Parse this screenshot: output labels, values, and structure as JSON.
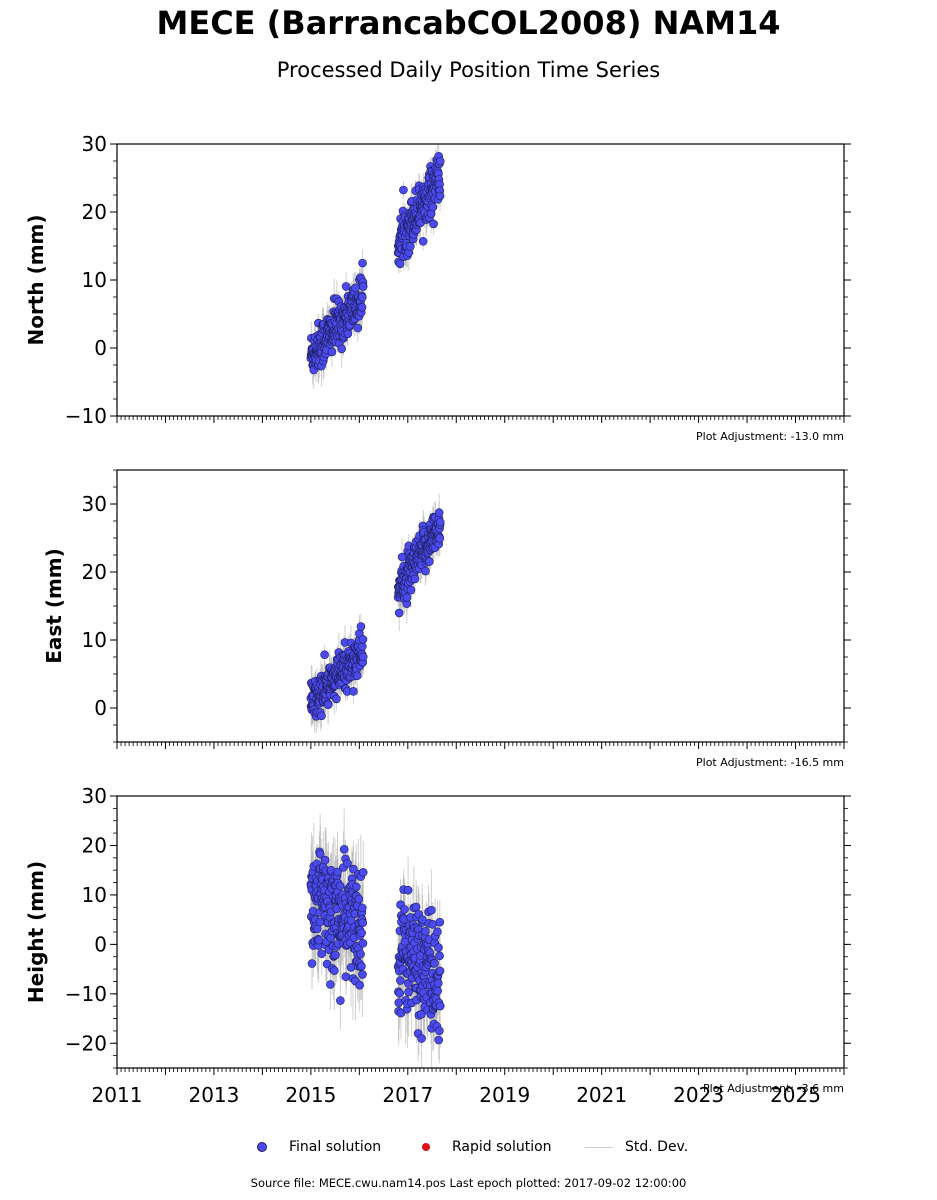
{
  "title": "MECE (BarrancabCOL2008) NAM14",
  "subtitle": "Processed Daily Position Time Series",
  "legend": {
    "final": "Final solution",
    "rapid": "Rapid solution",
    "std": "Std. Dev."
  },
  "footer": "Source file: MECE.cwu.nam14.pos  Last epoch plotted: 2017-09-02 12:00:00",
  "colors": {
    "final": "#4a4aee",
    "final_edge": "#1e1e5a",
    "rapid": "#dd1111",
    "std": "#b0b0b0"
  },
  "chart_data": {
    "type": "scatter",
    "x_range": [
      2011,
      2026
    ],
    "x_ticks": [
      2011,
      2013,
      2015,
      2017,
      2019,
      2021,
      2023,
      2025
    ],
    "x_tick_labels": [
      "2011",
      "2013",
      "2015",
      "2017",
      "2019",
      "2021",
      "2023",
      "2025"
    ],
    "panels": [
      {
        "name": "north",
        "ylabel": "North (mm)",
        "ylim": [
          -10,
          30
        ],
        "y_ticks": [
          -10,
          0,
          10,
          20,
          30
        ],
        "y_tick_labels": [
          "−10",
          "0",
          "10",
          "20",
          "30"
        ],
        "adjustment": "Plot Adjustment: -13.0 mm",
        "segments": [
          {
            "x": [
              2015.0,
              2016.08
            ],
            "y": [
              -1.0,
              7.5
            ]
          },
          {
            "x": [
              2016.8,
              2017.67
            ],
            "y": [
              15.5,
              25.5
            ]
          }
        ],
        "scatter": 1.7,
        "errorbar": 2.0
      },
      {
        "name": "east",
        "ylabel": "East (mm)",
        "ylim": [
          -5,
          35
        ],
        "y_ticks": [
          0,
          10,
          20,
          30
        ],
        "y_tick_labels": [
          "0",
          "10",
          "20",
          "30"
        ],
        "adjustment": "Plot Adjustment: -16.5 mm",
        "segments": [
          {
            "x": [
              2015.0,
              2016.08
            ],
            "y": [
              0.5,
              8.5
            ]
          },
          {
            "x": [
              2016.8,
              2017.67
            ],
            "y": [
              17.0,
              27.0
            ]
          }
        ],
        "scatter": 1.6,
        "errorbar": 2.0
      },
      {
        "name": "height",
        "ylabel": "Height (mm)",
        "ylim": [
          -25,
          30
        ],
        "y_ticks": [
          -20,
          -10,
          0,
          10,
          20,
          30
        ],
        "y_tick_labels": [
          "−20",
          "−10",
          "0",
          "10",
          "20",
          "30"
        ],
        "adjustment": "Plot Adjustment: -3.6 mm",
        "segments": [
          {
            "x": [
              2015.0,
              2016.08
            ],
            "y": [
              9.0,
              3.0
            ]
          },
          {
            "x": [
              2016.8,
              2017.67
            ],
            "y": [
              0.0,
              -8.0
            ]
          }
        ],
        "scatter": 6.0,
        "errorbar": 6.0
      }
    ]
  }
}
